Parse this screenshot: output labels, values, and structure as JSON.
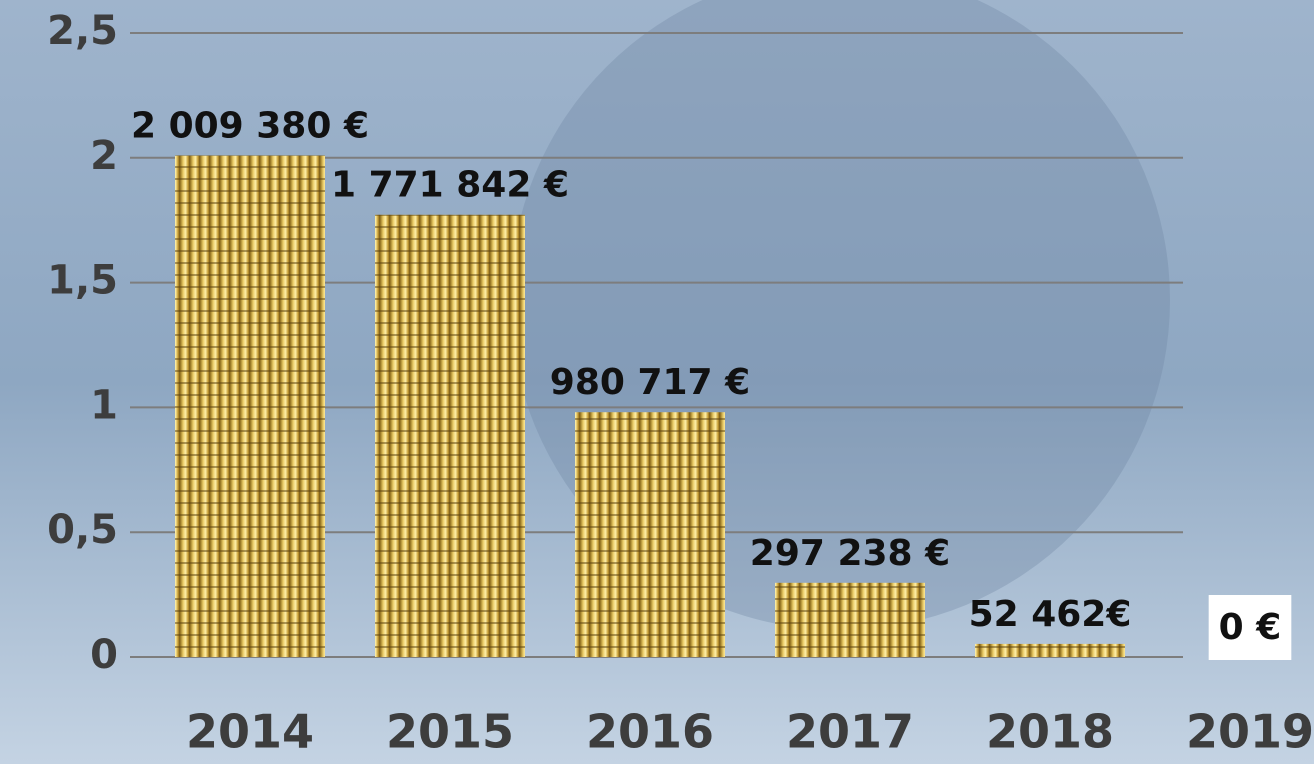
{
  "chart_data": {
    "type": "bar",
    "categories": [
      "2014",
      "2015",
      "2016",
      "2017",
      "2018",
      "2019"
    ],
    "values": [
      2.00938,
      1.771842,
      0.980717,
      0.297238,
      0.052462,
      0
    ],
    "value_labels": [
      "2 009 380 €",
      "1 771 842 €",
      "980 717 €",
      "297 238 €",
      "52 462€",
      "0 €"
    ],
    "color": "#c9a63a",
    "ylim": [
      0,
      2.5
    ],
    "yticks": [
      0,
      {
        "value": 0.5,
        "label": "0,5"
      },
      1,
      {
        "value": 1.5,
        "label": "1,5"
      },
      2,
      {
        "value": 2.5,
        "label": "2,5"
      }
    ],
    "grid": true
  }
}
